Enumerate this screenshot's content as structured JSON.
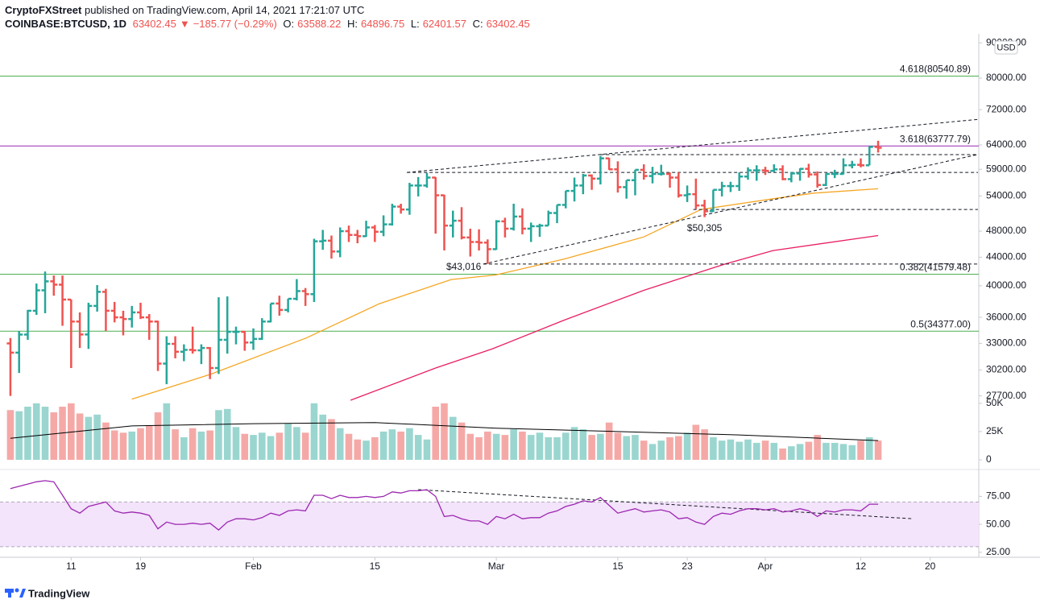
{
  "header": {
    "publisher": "CryptoFXStreet",
    "published": "published on TradingView.com, April 14, 2021 17:21:07 UTC",
    "symbol": "COINBASE:BTCUSD, 1D",
    "last": "63402.45",
    "change": "−185.77 (−0.29%)",
    "o_label": "O:",
    "o": "63588.22",
    "h_label": "H:",
    "h": "64896.75",
    "l_label": "L:",
    "l": "62401.57",
    "c_label": "C:",
    "c": "63402.45"
  },
  "footer": {
    "brand": "TradingView"
  },
  "chart_data": [
    {
      "type": "ohlc",
      "scale": "log",
      "unit_label": "USD",
      "up_color": "#26a69a",
      "down_color": "#ef5350",
      "x": [
        4,
        5,
        6,
        7,
        8,
        9,
        10,
        11,
        12,
        13,
        14,
        15,
        16,
        17,
        18,
        19,
        20,
        21,
        22,
        23,
        24,
        25,
        26,
        27,
        28,
        29,
        30,
        31,
        32,
        33,
        34,
        35,
        36,
        37,
        38,
        39,
        40,
        41,
        42,
        43,
        44,
        45,
        46,
        47,
        48,
        49,
        50,
        51,
        52,
        53,
        54,
        55,
        56,
        57,
        58,
        59,
        60,
        61,
        62,
        63,
        64,
        65,
        66,
        67,
        68,
        69,
        70,
        71,
        72,
        73,
        74,
        75,
        76,
        77,
        78,
        79,
        80,
        81,
        82,
        83,
        84,
        85,
        86,
        87,
        88,
        89,
        90,
        91,
        92,
        93,
        94,
        95,
        96,
        97,
        98,
        99,
        100,
        101,
        102,
        103,
        104
      ],
      "open": [
        33000,
        32000,
        33990,
        36800,
        39400,
        40600,
        40150,
        38200,
        35500,
        34000,
        37400,
        39200,
        36800,
        36000,
        35800,
        36600,
        36000,
        35500,
        30850,
        32950,
        32100,
        32300,
        32250,
        32500,
        30400,
        33400,
        34300,
        34300,
        33100,
        33500,
        35500,
        37700,
        36900,
        38300,
        39300,
        38900,
        46400,
        46500,
        44850,
        48000,
        47400,
        47200,
        48600,
        47900,
        49100,
        52100,
        51600,
        55900,
        55900,
        57400,
        54100,
        48900,
        49700,
        47000,
        46300,
        46200,
        45200,
        49600,
        48400,
        50400,
        48400,
        48800,
        48900,
        51000,
        52400,
        54900,
        55900,
        57800,
        57200,
        61200,
        59000,
        55600,
        56900,
        58900,
        57700,
        58100,
        58100,
        57400,
        54100,
        54300,
        52300,
        51300,
        55100,
        55800,
        55800,
        57600,
        58800,
        58800,
        58700,
        59000,
        57100,
        58200,
        59100,
        58000,
        56000,
        58100,
        58100,
        59800,
        59900,
        59800,
        63588.22
      ],
      "high": [
        33600,
        34400,
        36900,
        40300,
        41950,
        41400,
        41400,
        38200,
        36600,
        37800,
        40100,
        39600,
        37900,
        36800,
        37400,
        37800,
        36400,
        35600,
        33800,
        33800,
        32900,
        34900,
        32900,
        32600,
        38500,
        38600,
        34900,
        34400,
        34700,
        35900,
        37700,
        38700,
        38300,
        40900,
        39700,
        46800,
        48200,
        47300,
        48600,
        48900,
        48200,
        49700,
        49000,
        50600,
        52600,
        52600,
        56400,
        57500,
        58300,
        57500,
        54200,
        51400,
        52000,
        48400,
        48300,
        46700,
        49800,
        50200,
        52600,
        51800,
        49400,
        49200,
        51400,
        52400,
        54900,
        57400,
        58100,
        58000,
        61700,
        61300,
        60600,
        56900,
        58900,
        60000,
        59500,
        59900,
        58400,
        58400,
        55900,
        57200,
        53300,
        55100,
        56600,
        56600,
        58400,
        59400,
        59800,
        59500,
        60000,
        59800,
        58500,
        59200,
        60100,
        58600,
        58200,
        58900,
        61200,
        60700,
        61200,
        63700,
        64896.75
      ],
      "low": [
        27700,
        29900,
        33400,
        36300,
        36500,
        38700,
        35000,
        30400,
        32500,
        32400,
        36700,
        34400,
        35400,
        33900,
        34800,
        35800,
        33400,
        30100,
        28800,
        31400,
        31100,
        31900,
        30800,
        29300,
        29800,
        31900,
        32900,
        32200,
        32300,
        33400,
        35400,
        36200,
        36600,
        38100,
        37400,
        37900,
        45100,
        43800,
        44000,
        46300,
        46100,
        47100,
        46300,
        47200,
        48900,
        50900,
        50700,
        53900,
        55500,
        47600,
        45000,
        47000,
        46700,
        44100,
        45000,
        43016,
        45100,
        47000,
        48100,
        47500,
        46300,
        47100,
        48900,
        49300,
        51800,
        53000,
        54300,
        55100,
        56100,
        58900,
        54600,
        53500,
        54100,
        57000,
        56300,
        57800,
        55500,
        53700,
        52900,
        51700,
        50305,
        51200,
        53900,
        54700,
        54900,
        57000,
        56800,
        57900,
        58500,
        56900,
        56500,
        56800,
        57400,
        55500,
        55800,
        57300,
        58000,
        59200,
        59400,
        59800,
        62401.57
      ],
      "close": [
        32000,
        33990,
        36800,
        39400,
        40600,
        40150,
        38200,
        35500,
        34000,
        37400,
        39200,
        36800,
        36000,
        35800,
        36600,
        36000,
        35500,
        30850,
        32950,
        32100,
        32300,
        32250,
        32500,
        30400,
        33400,
        34300,
        34300,
        33100,
        33500,
        35500,
        37700,
        36900,
        38300,
        39300,
        38900,
        46400,
        46500,
        44850,
        48000,
        47400,
        47200,
        48600,
        47900,
        49100,
        52100,
        51600,
        55900,
        55900,
        57400,
        54100,
        48900,
        49700,
        47000,
        46300,
        46200,
        45200,
        49600,
        48400,
        50400,
        48400,
        48800,
        48900,
        51000,
        52400,
        54900,
        55900,
        57800,
        57200,
        61200,
        59000,
        55600,
        56900,
        58900,
        57700,
        58100,
        58100,
        57400,
        54100,
        54300,
        52300,
        51300,
        55100,
        55800,
        55800,
        57600,
        58800,
        58800,
        58700,
        59000,
        57100,
        58200,
        59100,
        58000,
        56000,
        58100,
        58100,
        59800,
        59900,
        59800,
        63588.22,
        63402.45
      ],
      "xlim": [
        2.8,
        115.6
      ],
      "ylim": [
        27300,
        92000
      ],
      "yticks": [
        {
          "value": 90000,
          "label": "90000.00"
        },
        {
          "value": 80000,
          "label": "80000.00"
        },
        {
          "value": 72000,
          "label": "72000.00"
        },
        {
          "value": 64000,
          "label": "64000.00"
        },
        {
          "value": 59000,
          "label": "59000.00"
        },
        {
          "value": 54000,
          "label": "54000.00"
        },
        {
          "value": 48000,
          "label": "48000.00"
        },
        {
          "value": 44000,
          "label": "44000.00"
        },
        {
          "value": 40000,
          "label": "40000.00"
        },
        {
          "value": 36000,
          "label": "36000.00"
        },
        {
          "value": 33000,
          "label": "33000.00"
        },
        {
          "value": 30200,
          "label": "30200.00"
        },
        {
          "value": 27700,
          "label": "27700.00"
        }
      ],
      "levels": [
        {
          "value": 80540.89,
          "label": "4.618(80540.89)",
          "color": "#4caf50"
        },
        {
          "value": 63777.79,
          "label": "3.618(63777.79)",
          "color": "#9c27b0"
        },
        {
          "value": 41579.48,
          "label": "0.382(41579.48)",
          "color": "#4caf50"
        },
        {
          "value": 34377.0,
          "label": "0.5(34377.00)",
          "color": "#4caf50"
        }
      ],
      "moving_averages": [
        {
          "color": "#f5a623",
          "x": [
            18,
            27,
            38.1,
            46.5,
            54.8,
            59.9,
            67.8,
            77,
            83.6,
            91.9,
            96.6,
            104
          ],
          "values": [
            27400,
            29750,
            33600,
            37670,
            40850,
            41460,
            43720,
            47080,
            51600,
            53480,
            54500,
            55300
          ]
        },
        {
          "color": "#e91e63",
          "x": [
            43.2,
            53,
            59.5,
            67.8,
            77,
            86.4,
            91.9,
            104
          ],
          "values": [
            27300,
            30400,
            32390,
            35660,
            39400,
            43030,
            45000,
            47300
          ]
        }
      ],
      "trendlines": [
        {
          "x": [
            49.7,
            115.5
          ],
          "y": [
            58400,
            69700
          ]
        },
        {
          "x": [
            72,
            115.5
          ],
          "y": [
            61970,
            61970
          ]
        },
        {
          "x": [
            49.7,
            115.5
          ],
          "y": [
            58400,
            58400
          ]
        },
        {
          "x": [
            58.5,
            115.5
          ],
          "y": [
            43016,
            62000
          ]
        },
        {
          "x": [
            58.5,
            115.5
          ],
          "y": [
            43016,
            43016
          ]
        },
        {
          "x": [
            82.7,
            115.5
          ],
          "y": [
            51600,
            51600
          ]
        }
      ],
      "annotations": [
        {
          "text": "$43,016",
          "x": 59,
          "y": 43016
        },
        {
          "text": "$50,305",
          "x": 84,
          "y": 50305
        }
      ]
    },
    {
      "type": "bar",
      "up_color": "#9ad6cf",
      "down_color": "#f5a9a7",
      "x": [
        4,
        5,
        6,
        7,
        8,
        9,
        10,
        11,
        12,
        13,
        14,
        15,
        16,
        17,
        18,
        19,
        20,
        21,
        22,
        23,
        24,
        25,
        26,
        27,
        28,
        29,
        30,
        31,
        32,
        33,
        34,
        35,
        36,
        37,
        38,
        39,
        40,
        41,
        42,
        43,
        44,
        45,
        46,
        47,
        48,
        49,
        50,
        51,
        52,
        53,
        54,
        55,
        56,
        57,
        58,
        59,
        60,
        61,
        62,
        63,
        64,
        65,
        66,
        67,
        68,
        69,
        70,
        71,
        72,
        73,
        74,
        75,
        76,
        77,
        78,
        79,
        80,
        81,
        82,
        83,
        84,
        85,
        86,
        87,
        88,
        89,
        90,
        91,
        92,
        93,
        94,
        95,
        96,
        97,
        98,
        99,
        100,
        101,
        102,
        103,
        104
      ],
      "values": [
        44000,
        43000,
        47000,
        50000,
        47000,
        42000,
        47000,
        50000,
        41000,
        38000,
        40000,
        33000,
        26000,
        24000,
        25000,
        28000,
        30000,
        42000,
        50000,
        27000,
        20000,
        28000,
        25000,
        26000,
        44000,
        45000,
        29000,
        23000,
        22000,
        24000,
        21000,
        24000,
        32000,
        29000,
        24000,
        50000,
        40000,
        36000,
        28000,
        23000,
        18000,
        17000,
        20000,
        25000,
        27000,
        25000,
        28000,
        22000,
        18000,
        47000,
        50000,
        38000,
        33000,
        23000,
        20000,
        25000,
        23000,
        22000,
        27000,
        25000,
        22000,
        24000,
        20000,
        20000,
        24000,
        29000,
        27000,
        22000,
        23000,
        33000,
        24000,
        21000,
        22000,
        17000,
        14000,
        17000,
        20000,
        21000,
        24000,
        31000,
        27000,
        20000,
        17000,
        18000,
        16000,
        18000,
        15000,
        17000,
        15000,
        10000,
        12000,
        14000,
        16000,
        22000,
        15000,
        15000,
        14000,
        13000,
        17000,
        20000,
        17000
      ],
      "xlim": [
        2.8,
        115.6
      ],
      "ylim": [
        0,
        52000
      ],
      "yticks": [
        0,
        {
          "value": 25000,
          "label": "25K"
        },
        {
          "value": 50000,
          "label": "50K"
        }
      ],
      "ma": {
        "color": "#000000",
        "x": [
          4,
          18,
          32,
          46,
          60,
          74,
          88,
          104
        ],
        "values": [
          19000,
          30000,
          32000,
          33000,
          28000,
          25000,
          22000,
          17000
        ]
      }
    },
    {
      "type": "line",
      "color": "#9c27b0",
      "x": [
        4,
        5,
        6,
        7,
        8,
        9,
        10,
        11,
        12,
        13,
        14,
        15,
        16,
        17,
        18,
        19,
        20,
        21,
        22,
        23,
        24,
        25,
        26,
        27,
        28,
        29,
        30,
        31,
        32,
        33,
        34,
        35,
        36,
        37,
        38,
        39,
        40,
        41,
        42,
        43,
        44,
        45,
        46,
        47,
        48,
        49,
        50,
        51,
        52,
        53,
        54,
        55,
        56,
        57,
        58,
        59,
        60,
        61,
        62,
        63,
        64,
        65,
        66,
        67,
        68,
        69,
        70,
        71,
        72,
        73,
        74,
        75,
        76,
        77,
        78,
        79,
        80,
        81,
        82,
        83,
        84,
        85,
        86,
        87,
        88,
        89,
        90,
        91,
        92,
        93,
        94,
        95,
        96,
        97,
        98,
        99,
        100,
        101,
        102,
        103,
        104
      ],
      "values": [
        82,
        84,
        86,
        88,
        89,
        88,
        76,
        64,
        60,
        66,
        68,
        70,
        62,
        60,
        61,
        60,
        58,
        46,
        52,
        50,
        50,
        51,
        50,
        51,
        45,
        52,
        55,
        55,
        54,
        56,
        60,
        58,
        62,
        63,
        62,
        76,
        76,
        73,
        76,
        74,
        74,
        75,
        74,
        75,
        79,
        78,
        80,
        80,
        81,
        75,
        57,
        58,
        55,
        53,
        53,
        50,
        57,
        55,
        59,
        55,
        56,
        56,
        60,
        62,
        66,
        68,
        71,
        70,
        74,
        67,
        60,
        62,
        64,
        61,
        62,
        63,
        61,
        55,
        56,
        52,
        50,
        57,
        60,
        59,
        62,
        64,
        64,
        63,
        64,
        61,
        62,
        64,
        62,
        57,
        62,
        61,
        63,
        63,
        62,
        68,
        68
      ],
      "xlim": [
        2.8,
        115.6
      ],
      "ylim": [
        22,
        94
      ],
      "yticks": [
        {
          "value": 25,
          "label": "25.00"
        },
        {
          "value": 50,
          "label": "50.00"
        },
        {
          "value": 75,
          "label": "75.00"
        }
      ],
      "band": [
        30,
        70
      ],
      "band_color": "#f3e3fb",
      "trendline": {
        "x": [
          51,
          108
        ],
        "y": [
          81,
          55
        ]
      },
      "xticks": [
        11,
        19,
        {
          "value": 32,
          "label": "Feb"
        },
        {
          "value": 46,
          "label": "15"
        },
        {
          "value": 60,
          "label": "Mar"
        },
        {
          "value": 74,
          "label": "15"
        },
        {
          "value": 82,
          "label": "23"
        },
        {
          "value": 91,
          "label": "Apr"
        },
        {
          "value": 102,
          "label": "12"
        },
        {
          "value": 110,
          "label": "20"
        }
      ]
    }
  ]
}
